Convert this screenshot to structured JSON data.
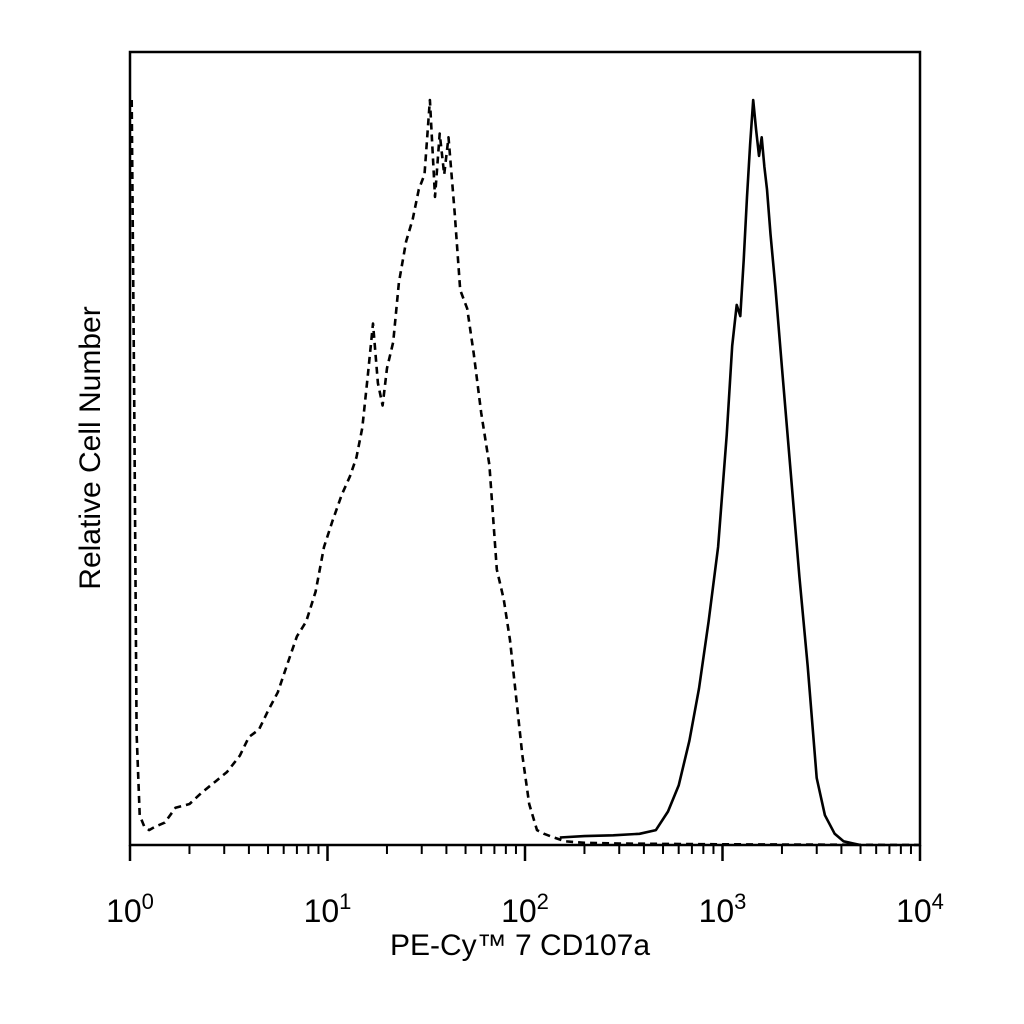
{
  "chart_data": {
    "type": "line",
    "title": "",
    "xlabel": "PE-Cy™ 7 CD107a",
    "ylabel": "Relative Cell Number",
    "x_scale": "log",
    "xlim": [
      1,
      10000
    ],
    "ylim": [
      0,
      100
    ],
    "grid": false,
    "legend": "none",
    "x_ticks": [
      {
        "value": 1,
        "base": "10",
        "exp": "0"
      },
      {
        "value": 10,
        "base": "10",
        "exp": "1"
      },
      {
        "value": 100,
        "base": "10",
        "exp": "2"
      },
      {
        "value": 1000,
        "base": "10",
        "exp": "3"
      },
      {
        "value": 10000,
        "base": "10",
        "exp": "4"
      }
    ],
    "series": [
      {
        "style": "dashed",
        "color": "#000000",
        "x": [
          1.02,
          1.05,
          1.08,
          1.12,
          1.18,
          1.25,
          1.35,
          1.5,
          1.7,
          2.0,
          2.3,
          2.7,
          3.1,
          3.6,
          4.0,
          4.5,
          5.0,
          5.6,
          6.3,
          7.0,
          7.8,
          8.7,
          9.6,
          10.6,
          11.8,
          13.0,
          14.0,
          15.0,
          16.0,
          17.0,
          18.0,
          19.0,
          20.0,
          21.5,
          23.0,
          25.0,
          27.0,
          29.0,
          31.0,
          33.0,
          35.0,
          37.0,
          39.0,
          41.0,
          44.0,
          47.0,
          51.0,
          55.0,
          60.0,
          66.0,
          72.0,
          78.0,
          84.0,
          90.0,
          97.0,
          105.0,
          115.0,
          125.0,
          140.0,
          160.0,
          200.0,
          300.0,
          500.0,
          1000.0,
          3000.0,
          10000.0
        ],
        "y": [
          100,
          60,
          15,
          4,
          2.5,
          2.0,
          2.5,
          3.0,
          5.0,
          5.5,
          7.0,
          8.5,
          9.8,
          12.0,
          14.5,
          15.5,
          18.0,
          20.5,
          24.5,
          28.0,
          30.0,
          34.0,
          40.0,
          43.5,
          47.0,
          49.5,
          52.0,
          56.0,
          63.0,
          70.0,
          62.0,
          59.0,
          64.0,
          67.5,
          75.5,
          81.0,
          84.0,
          88.0,
          90.0,
          100.0,
          87.0,
          95.5,
          90.0,
          95.0,
          85.0,
          74.5,
          72.0,
          66.0,
          58.0,
          51.0,
          37.0,
          33.0,
          27.5,
          20.0,
          12.0,
          5.5,
          2.0,
          1.5,
          1.0,
          0.5,
          0.3,
          0.2,
          0.15,
          0.1,
          0.05,
          0.0
        ]
      },
      {
        "style": "solid",
        "color": "#000000",
        "x": [
          150.0,
          200.0,
          280.0,
          380.0,
          460.0,
          530.0,
          600.0,
          680.0,
          760.0,
          850.0,
          950.0,
          1050.0,
          1120.0,
          1180.0,
          1230.0,
          1280.0,
          1330.0,
          1380.0,
          1430.0,
          1480.0,
          1530.0,
          1580.0,
          1630.0,
          1680.0,
          1750.0,
          1850.0,
          2000.0,
          2200.0,
          2450.0,
          2700.0,
          3000.0,
          3300.0,
          3700.0,
          4100.0,
          4600.0,
          5000.0
        ],
        "y": [
          1.0,
          1.2,
          1.3,
          1.5,
          2.0,
          4.5,
          8.0,
          14.0,
          21.0,
          30.0,
          40.0,
          55.0,
          67.0,
          72.5,
          71.0,
          78.5,
          87.0,
          94.0,
          100.0,
          96.0,
          92.5,
          95.0,
          91.0,
          88.0,
          82.0,
          75.0,
          64.0,
          51.0,
          36.0,
          24.0,
          9.0,
          4.0,
          1.5,
          0.5,
          0.2,
          0.0
        ]
      }
    ]
  }
}
